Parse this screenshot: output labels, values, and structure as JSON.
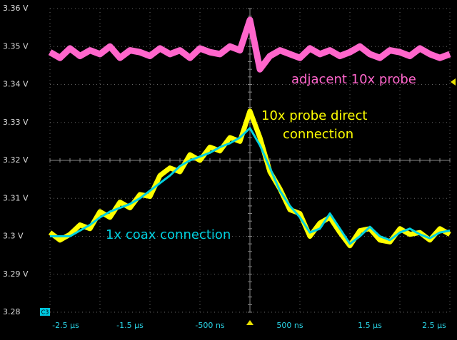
{
  "chart_data": {
    "type": "line",
    "x": [
      -2.5,
      -2.375,
      -2.25,
      -2.125,
      -2.0,
      -1.875,
      -1.75,
      -1.625,
      -1.5,
      -1.375,
      -1.25,
      -1.125,
      -1.0,
      -0.875,
      -0.75,
      -0.625,
      -0.5,
      -0.375,
      -0.25,
      -0.125,
      0,
      0.125,
      0.25,
      0.375,
      0.5,
      0.625,
      0.75,
      0.875,
      1.0,
      1.125,
      1.25,
      1.375,
      1.5,
      1.625,
      1.75,
      1.875,
      2.0,
      2.125,
      2.25,
      2.375,
      2.5
    ],
    "series": [
      {
        "name": "adjacent 10x probe",
        "color": "#ff66cc",
        "width": 9,
        "values": [
          3.3485,
          3.347,
          3.3495,
          3.3475,
          3.349,
          3.348,
          3.35,
          3.347,
          3.349,
          3.3485,
          3.3475,
          3.3495,
          3.348,
          3.349,
          3.347,
          3.3495,
          3.3485,
          3.348,
          3.35,
          3.349,
          3.357,
          3.344,
          3.3475,
          3.349,
          3.348,
          3.347,
          3.3495,
          3.348,
          3.349,
          3.3475,
          3.3485,
          3.35,
          3.348,
          3.347,
          3.349,
          3.3485,
          3.3475,
          3.3495,
          3.348,
          3.347,
          3.348
        ]
      },
      {
        "name": "10x probe direct connection",
        "color": "#ffff00",
        "width": 7,
        "values": [
          3.301,
          3.299,
          3.3005,
          3.303,
          3.302,
          3.3065,
          3.305,
          3.309,
          3.3075,
          3.311,
          3.3105,
          3.316,
          3.318,
          3.317,
          3.3215,
          3.32,
          3.3235,
          3.3225,
          3.326,
          3.325,
          3.333,
          3.326,
          3.317,
          3.3125,
          3.307,
          3.306,
          3.3,
          3.3035,
          3.305,
          3.301,
          3.2975,
          3.3015,
          3.302,
          3.299,
          3.2985,
          3.302,
          3.3005,
          3.301,
          3.299,
          3.302,
          3.3005
        ]
      },
      {
        "name": "1x coax connection",
        "color": "#00d0e0",
        "width": 3,
        "values": [
          3.3,
          3.3,
          3.3,
          3.3015,
          3.303,
          3.305,
          3.3065,
          3.3075,
          3.3085,
          3.31,
          3.312,
          3.314,
          3.316,
          3.3185,
          3.32,
          3.321,
          3.322,
          3.3235,
          3.3245,
          3.326,
          3.3285,
          3.324,
          3.318,
          3.312,
          3.308,
          3.305,
          3.301,
          3.302,
          3.306,
          3.302,
          3.298,
          3.3,
          3.3025,
          3.3,
          3.299,
          3.301,
          3.302,
          3.3005,
          3.2995,
          3.301,
          3.3015
        ]
      }
    ],
    "annotations": [
      {
        "lines": [
          "adjacent 10x probe"
        ],
        "color": "#ff66cc"
      },
      {
        "lines": [
          "10x probe direct",
          "connection"
        ],
        "color": "#ffff00"
      },
      {
        "lines": [
          "1x coax connection"
        ],
        "color": "#00d0e0"
      }
    ],
    "xlim": [
      -2.5,
      2.5
    ],
    "xticks": [
      {
        "value": -2.5,
        "label": "-2.5 µs"
      },
      {
        "value": -1.5,
        "label": "-1.5 µs"
      },
      {
        "value": -0.5,
        "label": "-500 ns"
      },
      {
        "value": 0.5,
        "label": "500 ns"
      },
      {
        "value": 1.5,
        "label": "1.5 µs"
      },
      {
        "value": 2.5,
        "label": "2.5 µs"
      }
    ],
    "xgrid": [
      -2.5,
      -1.875,
      -1.25,
      -0.625,
      0,
      0.625,
      1.25,
      1.875,
      2.5
    ],
    "ylim": [
      3.28,
      3.36
    ],
    "yticks": [
      {
        "value": 3.28,
        "label": "3.28"
      },
      {
        "value": 3.29,
        "label": "3.29 V"
      },
      {
        "value": 3.3,
        "label": "3.3 V"
      },
      {
        "value": 3.31,
        "label": "3.31 V"
      },
      {
        "value": 3.32,
        "label": "3.32 V"
      },
      {
        "value": 3.33,
        "label": "3.33 V"
      },
      {
        "value": 3.34,
        "label": "3.34 V"
      },
      {
        "value": 3.35,
        "label": "3.35 V"
      },
      {
        "value": 3.36,
        "label": "3.36 V"
      }
    ],
    "channel_badge": "C3",
    "grid": true
  }
}
